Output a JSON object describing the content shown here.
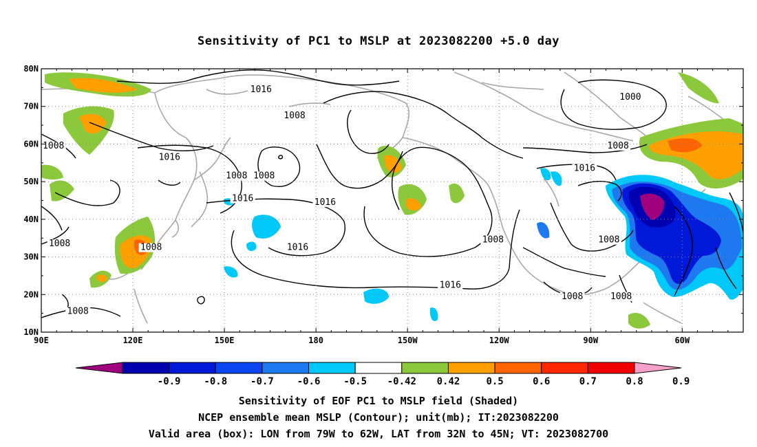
{
  "title": "Sensitivity of PC1 to MSLP at 2023082200 +5.0 day",
  "lat_ticks": [
    "80N",
    "70N",
    "60N",
    "50N",
    "40N",
    "30N",
    "20N",
    "10N"
  ],
  "lon_ticks": [
    "90E",
    "120E",
    "150E",
    "180",
    "150W",
    "120W",
    "90W",
    "60W"
  ],
  "contour_labels": [
    {
      "text": "1016",
      "lon": 162,
      "lat": 74
    },
    {
      "text": "1008",
      "lon": 173,
      "lat": 67
    },
    {
      "text": "1000",
      "lon": 283,
      "lat": 72
    },
    {
      "text": "1008",
      "lon": 94,
      "lat": 59
    },
    {
      "text": "1016",
      "lon": 132,
      "lat": 56
    },
    {
      "text": "1008",
      "lon": 279,
      "lat": 59
    },
    {
      "text": "1016",
      "lon": 268,
      "lat": 53
    },
    {
      "text": "1008",
      "lon": 154,
      "lat": 51
    },
    {
      "text": "1008",
      "lon": 163,
      "lat": 51
    },
    {
      "text": "1016",
      "lon": 183,
      "lat": 44
    },
    {
      "text": "1016",
      "lon": 156,
      "lat": 45
    },
    {
      "text": "1008",
      "lon": 96,
      "lat": 33
    },
    {
      "text": "1008",
      "lon": 126,
      "lat": 32
    },
    {
      "text": "1016",
      "lon": 174,
      "lat": 32
    },
    {
      "text": "1008",
      "lon": 238,
      "lat": 34
    },
    {
      "text": "1008",
      "lon": 276,
      "lat": 34
    },
    {
      "text": "1016",
      "lon": 224,
      "lat": 22
    },
    {
      "text": "1008",
      "lon": 102,
      "lat": 15
    },
    {
      "text": "1008",
      "lon": 264,
      "lat": 19
    },
    {
      "text": "1008",
      "lon": 280,
      "lat": 19
    }
  ],
  "colorbar": {
    "labels": [
      "-0.9",
      "-0.8",
      "-0.7",
      "-0.6",
      "-0.5",
      "-0.42",
      "0.42",
      "0.5",
      "0.6",
      "0.7",
      "0.8",
      "0.9"
    ],
    "colors": [
      "#a0007e",
      "#0000b0",
      "#0018d8",
      "#0c46f0",
      "#1e78f0",
      "#00c8f8",
      "#ffffff",
      "#8cc83c",
      "#ffa000",
      "#ff6400",
      "#ff2800",
      "#f00000",
      "#f5a0c8"
    ]
  },
  "captions": [
    "Sensitivity of EOF PC1 to MSLP field (Shaded)",
    "NCEP ensemble mean MSLP (Contour); unit(mb); IT:2023082200",
    "Valid area (box): LON from 79W to 62W, LAT from 32N to 45N; VT: 2023082700"
  ]
}
